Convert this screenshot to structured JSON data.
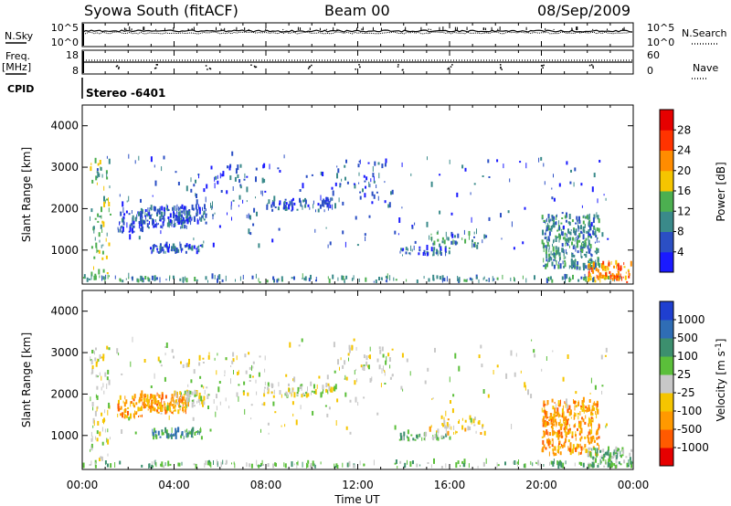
{
  "header": {
    "station": "Syowa South (fitACF)",
    "beam": "Beam 00",
    "date": "08/Sep/2009"
  },
  "side_labels": {
    "nsky": "N.Sky",
    "freq_top": "Freq.",
    "freq_unit": "[MHz]",
    "cpid": "CPID",
    "nsearch": "N.Search",
    "nave": "Nave"
  },
  "noise_panel": {
    "left_ticks": [
      "10^5",
      "10^0"
    ],
    "right_ticks": [
      "10^5",
      "10^0"
    ]
  },
  "freq_panel": {
    "left_ticks": [
      "18",
      "8"
    ],
    "right_ticks": [
      "60",
      "0"
    ]
  },
  "cpid_text": "Stereo -6401",
  "xaxis": {
    "label": "Time UT",
    "ticks": [
      "00:00",
      "04:00",
      "08:00",
      "12:00",
      "16:00",
      "20:00",
      "00:00"
    ],
    "range_hours": [
      0,
      24
    ]
  },
  "yaxis": {
    "label": "Slant Range [km]",
    "ticks": [
      1000,
      2000,
      3000,
      4000
    ],
    "range_km": [
      180,
      4500
    ]
  },
  "power_scale": {
    "label": "Power [dB]",
    "ticks": [
      "4",
      "8",
      "12",
      "16",
      "20",
      "24",
      "28"
    ],
    "colors": [
      "#1a1aff",
      "#2b4fc4",
      "#3a8a8a",
      "#4caf50",
      "#f5c500",
      "#ff8c00",
      "#ff3300",
      "#e60000"
    ]
  },
  "velocity_scale": {
    "label": "Velocity [m s^-1]",
    "ticks": [
      "1000",
      "500",
      "100",
      "25",
      "-25",
      "-100",
      "-500",
      "-1000"
    ],
    "colors": [
      "#1f3fd0",
      "#2f6db5",
      "#3c8f6e",
      "#5bbf3a",
      "#c8c8c8",
      "#f5c500",
      "#ff9900",
      "#ff5a00",
      "#e60000"
    ]
  },
  "chart_data": {
    "type": "heatmap",
    "panels": [
      "power",
      "velocity"
    ],
    "clusters": [
      {
        "t": [
          0.3,
          1.2
        ],
        "r": [
          300,
          3100
        ],
        "n": 70,
        "pw": 3,
        "vel": 4
      },
      {
        "t": [
          1.5,
          2.6
        ],
        "r": [
          1400,
          1900
        ],
        "n": 45,
        "pw": 1,
        "vel": 6
      },
      {
        "t": [
          2.5,
          4.6
        ],
        "r": [
          1500,
          2000
        ],
        "n": 150,
        "pw": 1,
        "vel": 6
      },
      {
        "t": [
          3.0,
          5.2
        ],
        "r": [
          900,
          1100
        ],
        "n": 70,
        "pw": 1,
        "vel": 2
      },
      {
        "t": [
          4.0,
          5.5
        ],
        "r": [
          1600,
          2000
        ],
        "n": 40,
        "pw": 1,
        "vel": 4
      },
      {
        "t": [
          0.0,
          23.5
        ],
        "r": [
          200,
          320
        ],
        "n": 180,
        "pw": 2,
        "vel": 3
      },
      {
        "t": [
          4.5,
          8.0
        ],
        "r": [
          1700,
          3000
        ],
        "n": 70,
        "pw": 1,
        "vel": 4
      },
      {
        "t": [
          8.0,
          11.0
        ],
        "r": [
          1900,
          2200
        ],
        "n": 70,
        "pw": 1,
        "vel": 4
      },
      {
        "t": [
          11.0,
          13.5
        ],
        "r": [
          2100,
          3100
        ],
        "n": 45,
        "pw": 1,
        "vel": 4
      },
      {
        "t": [
          13.8,
          16.0
        ],
        "r": [
          850,
          1000
        ],
        "n": 40,
        "pw": 1,
        "vel": 3
      },
      {
        "t": [
          15.0,
          17.5
        ],
        "r": [
          1000,
          1400
        ],
        "n": 40,
        "pw": 2,
        "vel": 5
      },
      {
        "t": [
          20.0,
          22.5
        ],
        "r": [
          500,
          1800
        ],
        "n": 320,
        "pw": 2,
        "vel": 6
      },
      {
        "t": [
          22.0,
          23.9
        ],
        "r": [
          200,
          650
        ],
        "n": 90,
        "pw": 5,
        "vel": 3
      },
      {
        "t": [
          0.5,
          23.0
        ],
        "r": [
          1000,
          3300
        ],
        "n": 160,
        "pw": 1,
        "vel": 4
      }
    ]
  }
}
